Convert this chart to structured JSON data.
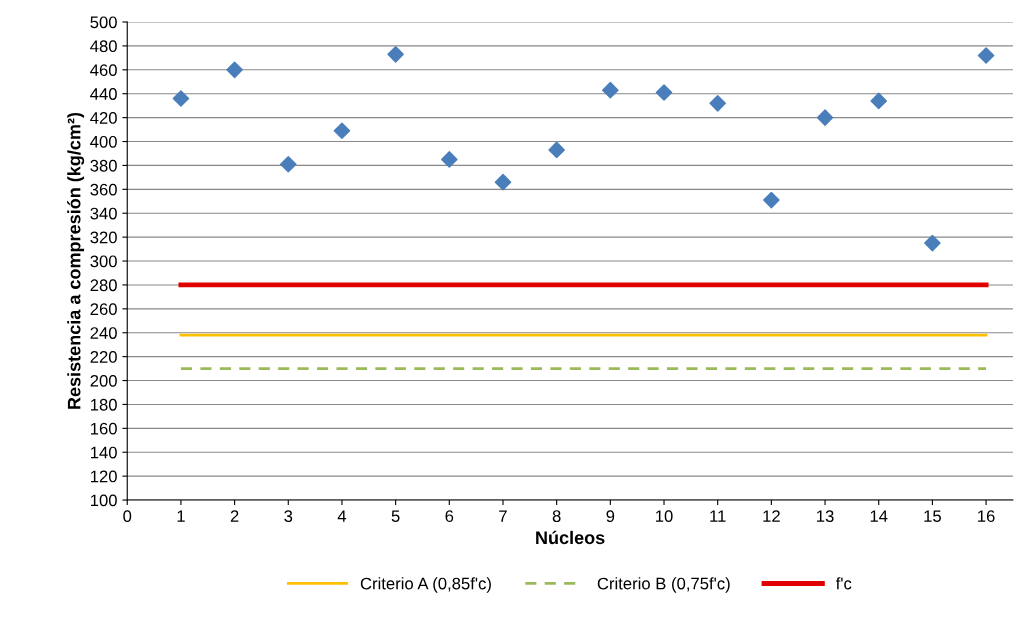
{
  "chart_data": {
    "type": "scatter",
    "xlabel": "Núcleos",
    "ylabel": "Resistencia a compresión (kg/cm²)",
    "xlim": [
      0,
      16.5
    ],
    "xticks": [
      0,
      1,
      2,
      3,
      4,
      5,
      6,
      7,
      8,
      9,
      10,
      11,
      12,
      13,
      14,
      15,
      16
    ],
    "ylim": [
      100,
      500
    ],
    "yticks": [
      100,
      120,
      140,
      160,
      180,
      200,
      220,
      240,
      260,
      280,
      300,
      320,
      340,
      360,
      380,
      400,
      420,
      440,
      460,
      480,
      500
    ],
    "grid": "y",
    "legend": "bottom",
    "series": [
      {
        "color": "#4a7ebb",
        "marker": "diamond",
        "x": [
          1,
          2,
          3,
          4,
          5,
          6,
          7,
          8,
          9,
          10,
          11,
          12,
          13,
          14,
          15,
          16
        ],
        "values": [
          436,
          460,
          381,
          409,
          473,
          385,
          366,
          393,
          443,
          441,
          432,
          351,
          420,
          434,
          315,
          472
        ]
      },
      {
        "type": "line",
        "name": "Criterio A (0,85f'c)",
        "color": "#ffc000",
        "line_style": "solid",
        "x": [
          1,
          16
        ],
        "values": [
          238,
          238
        ]
      },
      {
        "type": "line",
        "name": "Criterio B (0,75f'c)",
        "color": "#9bbb59",
        "line_style": "dashed",
        "x": [
          1,
          16
        ],
        "values": [
          210,
          210
        ]
      },
      {
        "type": "line",
        "name": "f'c",
        "color": "#e00000",
        "line_style": "solid",
        "x": [
          1,
          16
        ],
        "values": [
          280,
          280
        ]
      }
    ]
  }
}
